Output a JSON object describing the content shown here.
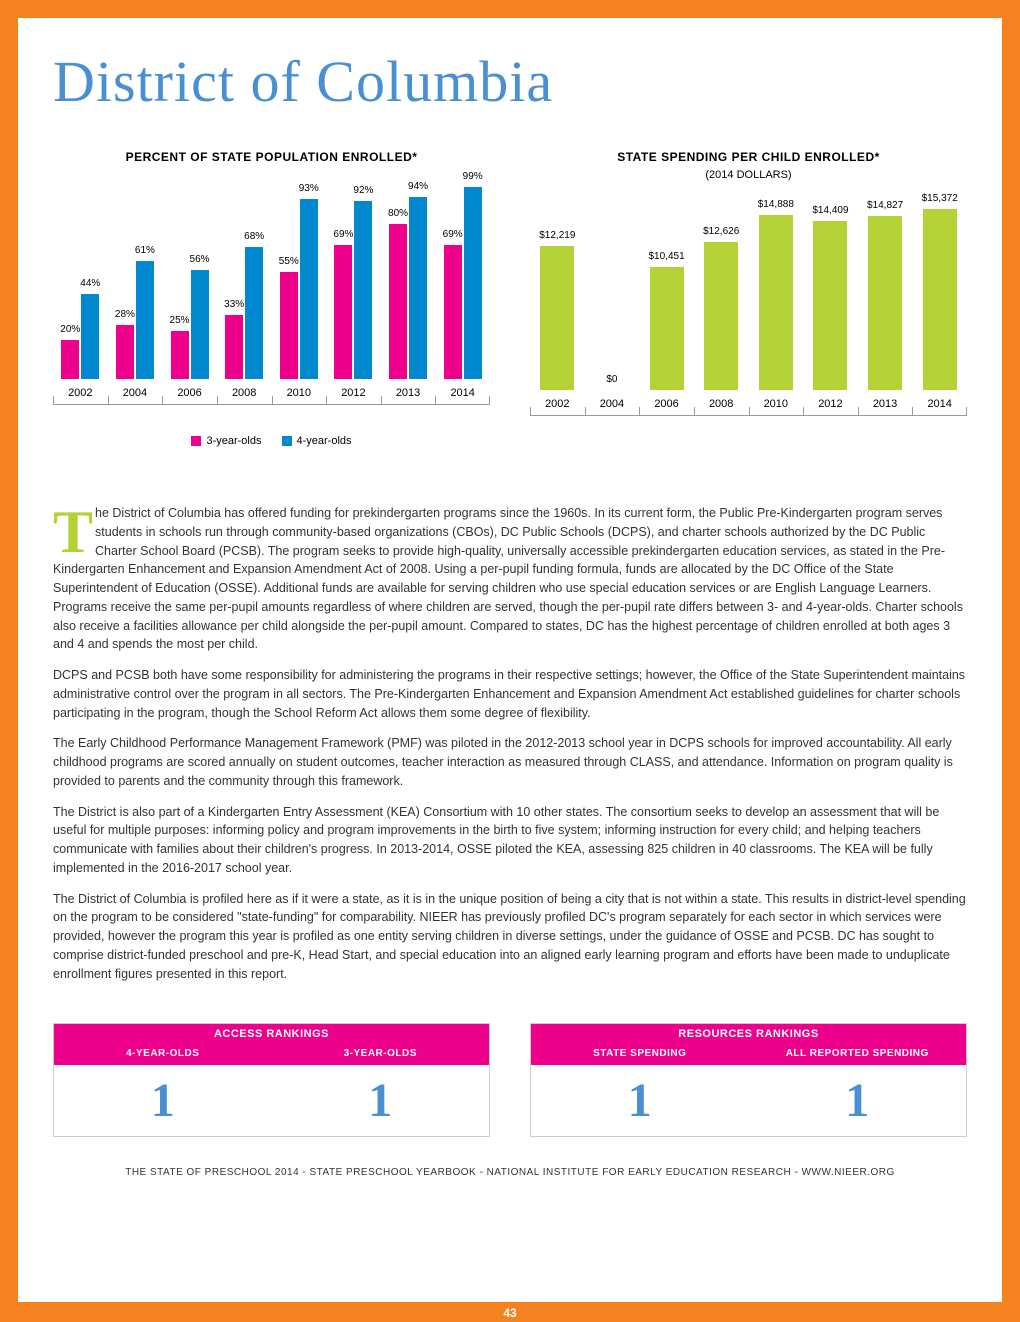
{
  "page": {
    "title": "District of Columbia",
    "page_number": "43",
    "footer": "THE STATE OF PRESCHOOL 2014 - STATE PRESCHOOL YEARBOOK - NATIONAL INSTITUTE FOR EARLY EDUCATION RESEARCH - WWW.NIEER.ORG"
  },
  "colors": {
    "orange": "#f58220",
    "pink": "#ec008c",
    "blue": "#0089cf",
    "green": "#b2d235",
    "title_blue": "#4a8fd4"
  },
  "chart_enrollment": {
    "title": "PERCENT OF STATE POPULATION ENROLLED*",
    "type": "grouped-bar",
    "years": [
      "2002",
      "2004",
      "2006",
      "2008",
      "2010",
      "2012",
      "2013",
      "2014"
    ],
    "series": [
      {
        "name": "3-year-olds",
        "color": "#ec008c",
        "values": [
          20,
          28,
          25,
          33,
          55,
          69,
          80,
          69
        ],
        "labels": [
          "20%",
          "28%",
          "25%",
          "33%",
          "55%",
          "69%",
          "80%",
          "69%"
        ]
      },
      {
        "name": "4-year-olds",
        "color": "#0089cf",
        "values": [
          44,
          61,
          56,
          68,
          93,
          92,
          94,
          99
        ],
        "labels": [
          "44%",
          "61%",
          "56%",
          "68%",
          "93%",
          "92%",
          "94%",
          "99%"
        ]
      }
    ],
    "ymax": 100,
    "legend": [
      "3-year-olds",
      "4-year-olds"
    ]
  },
  "chart_spending": {
    "title": "STATE SPENDING PER CHILD ENROLLED*",
    "subtitle": "(2014 DOLLARS)",
    "type": "bar",
    "years": [
      "2002",
      "2004",
      "2006",
      "2008",
      "2010",
      "2012",
      "2013",
      "2014"
    ],
    "values": [
      12219,
      0,
      10451,
      12626,
      14888,
      14409,
      14827,
      15372
    ],
    "labels": [
      "$12,219",
      "$0",
      "$10,451",
      "$12,626",
      "$14,888",
      "$14,409",
      "$14,827",
      "$15,372"
    ],
    "color": "#b2d235",
    "ymax": 16500
  },
  "body": {
    "drop_cap": "T",
    "p1": "he District of Columbia has offered funding for prekindergarten programs since the 1960s. In its current form, the Public Pre-Kindergarten program serves students in schools run through community-based organizations (CBOs), DC Public Schools (DCPS), and charter schools authorized by the DC Public Charter School Board (PCSB). The program seeks to provide high-quality, universally accessible prekindergarten education services, as stated in the Pre-Kindergarten Enhancement and Expansion Amendment Act of 2008. Using a per-pupil funding formula, funds are allocated by the DC Office of the State Superintendent of Education (OSSE). Additional funds are available for serving children who use special education services or are English Language Learners. Programs receive the same per-pupil amounts regardless of where children are served, though the per-pupil rate differs between 3- and 4-year-olds. Charter schools also receive a facilities allowance per child alongside the per-pupil amount. Compared to states, DC has the highest percentage of children enrolled at both ages 3 and 4 and spends the most per child.",
    "p2": "DCPS and PCSB both have some responsibility for administering the programs in their respective settings; however, the Office of the State Superintendent maintains administrative control over the program in all sectors. The Pre-Kindergarten Enhancement and Expansion Amendment Act established guidelines for charter schools participating in the program, though the School Reform Act allows them some degree of flexibility.",
    "p3": "The Early Childhood Performance Management Framework (PMF) was piloted in the 2012-2013 school year in DCPS schools for improved accountability. All early childhood programs are scored annually on student outcomes, teacher interaction as measured through CLASS, and attendance. Information on program quality is provided to parents and the community through this framework.",
    "p4": "The District is also part of a Kindergarten Entry Assessment (KEA) Consortium with 10 other states. The consortium seeks to develop an assessment that will be useful for multiple purposes: informing policy and program improvements in the birth to five system; informing instruction for every child; and helping teachers communicate with families about their children's progress. In 2013-2014, OSSE piloted the KEA, assessing 825 children in 40 classrooms. The KEA will be fully implemented in the 2016-2017 school year.",
    "p5": "The District of Columbia is profiled here as if it were a state, as it is in the unique position of being a city that is not within a state. This results in district-level spending on the program to be considered \"state-funding\" for comparability. NIEER has previously profiled DC's program separately for each sector in which services were provided, however the program this year is profiled as one entity serving children in diverse settings, under the guidance of OSSE and PCSB. DC has sought to comprise district-funded preschool and pre-K, Head Start, and special education into an aligned early learning program and efforts have been made to unduplicate enrollment figures presented in this report."
  },
  "rankings": {
    "access": {
      "title": "ACCESS RANKINGS",
      "cols": [
        "4-YEAR-OLDS",
        "3-YEAR-OLDS"
      ],
      "values": [
        "1",
        "1"
      ]
    },
    "resources": {
      "title": "RESOURCES RANKINGS",
      "cols": [
        "STATE SPENDING",
        "ALL REPORTED SPENDING"
      ],
      "values": [
        "1",
        "1"
      ]
    }
  }
}
